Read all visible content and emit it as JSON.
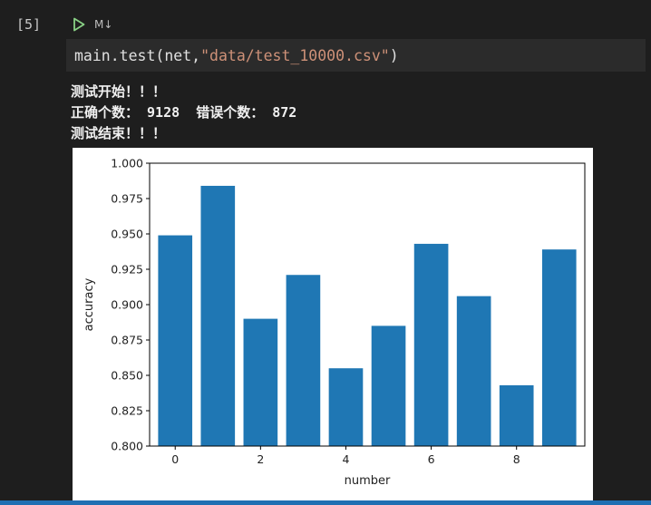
{
  "cell": {
    "execution_count": "[5]",
    "cell_type_label": "M↓",
    "code": {
      "prefix": "main.test(net,",
      "string_arg": "\"data/test_10000.csv\"",
      "suffix": ")"
    },
    "output_lines": [
      "测试开始！！！",
      "正确个数： 9128  错误个数： 872",
      "测试结束！！！"
    ]
  },
  "chart_data": {
    "type": "bar",
    "categories": [
      "0",
      "1",
      "2",
      "3",
      "4",
      "5",
      "6",
      "7",
      "8",
      "9"
    ],
    "x": [
      0,
      1,
      2,
      3,
      4,
      5,
      6,
      7,
      8,
      9
    ],
    "values": [
      0.949,
      0.984,
      0.89,
      0.921,
      0.855,
      0.885,
      0.943,
      0.906,
      0.843,
      0.939
    ],
    "title": "",
    "xlabel": "number",
    "ylabel": "accuracy",
    "ylim": [
      0.8,
      1.0
    ],
    "xlim": [
      -0.6,
      9.6
    ],
    "yticks": [
      0.8,
      0.825,
      0.85,
      0.875,
      0.9,
      0.925,
      0.95,
      0.975,
      1.0
    ],
    "ytick_labels": [
      "0.800",
      "0.825",
      "0.850",
      "0.875",
      "0.900",
      "0.925",
      "0.950",
      "0.975",
      "1.000"
    ],
    "xticks": [
      0,
      2,
      4,
      6,
      8
    ],
    "xtick_labels": [
      "0",
      "2",
      "4",
      "6",
      "8"
    ],
    "bar_color": "#1f77b4",
    "grid": false,
    "legend": "none"
  },
  "theme": {
    "accent": "#1f6fb2",
    "run_icon_color": "#89d185"
  }
}
